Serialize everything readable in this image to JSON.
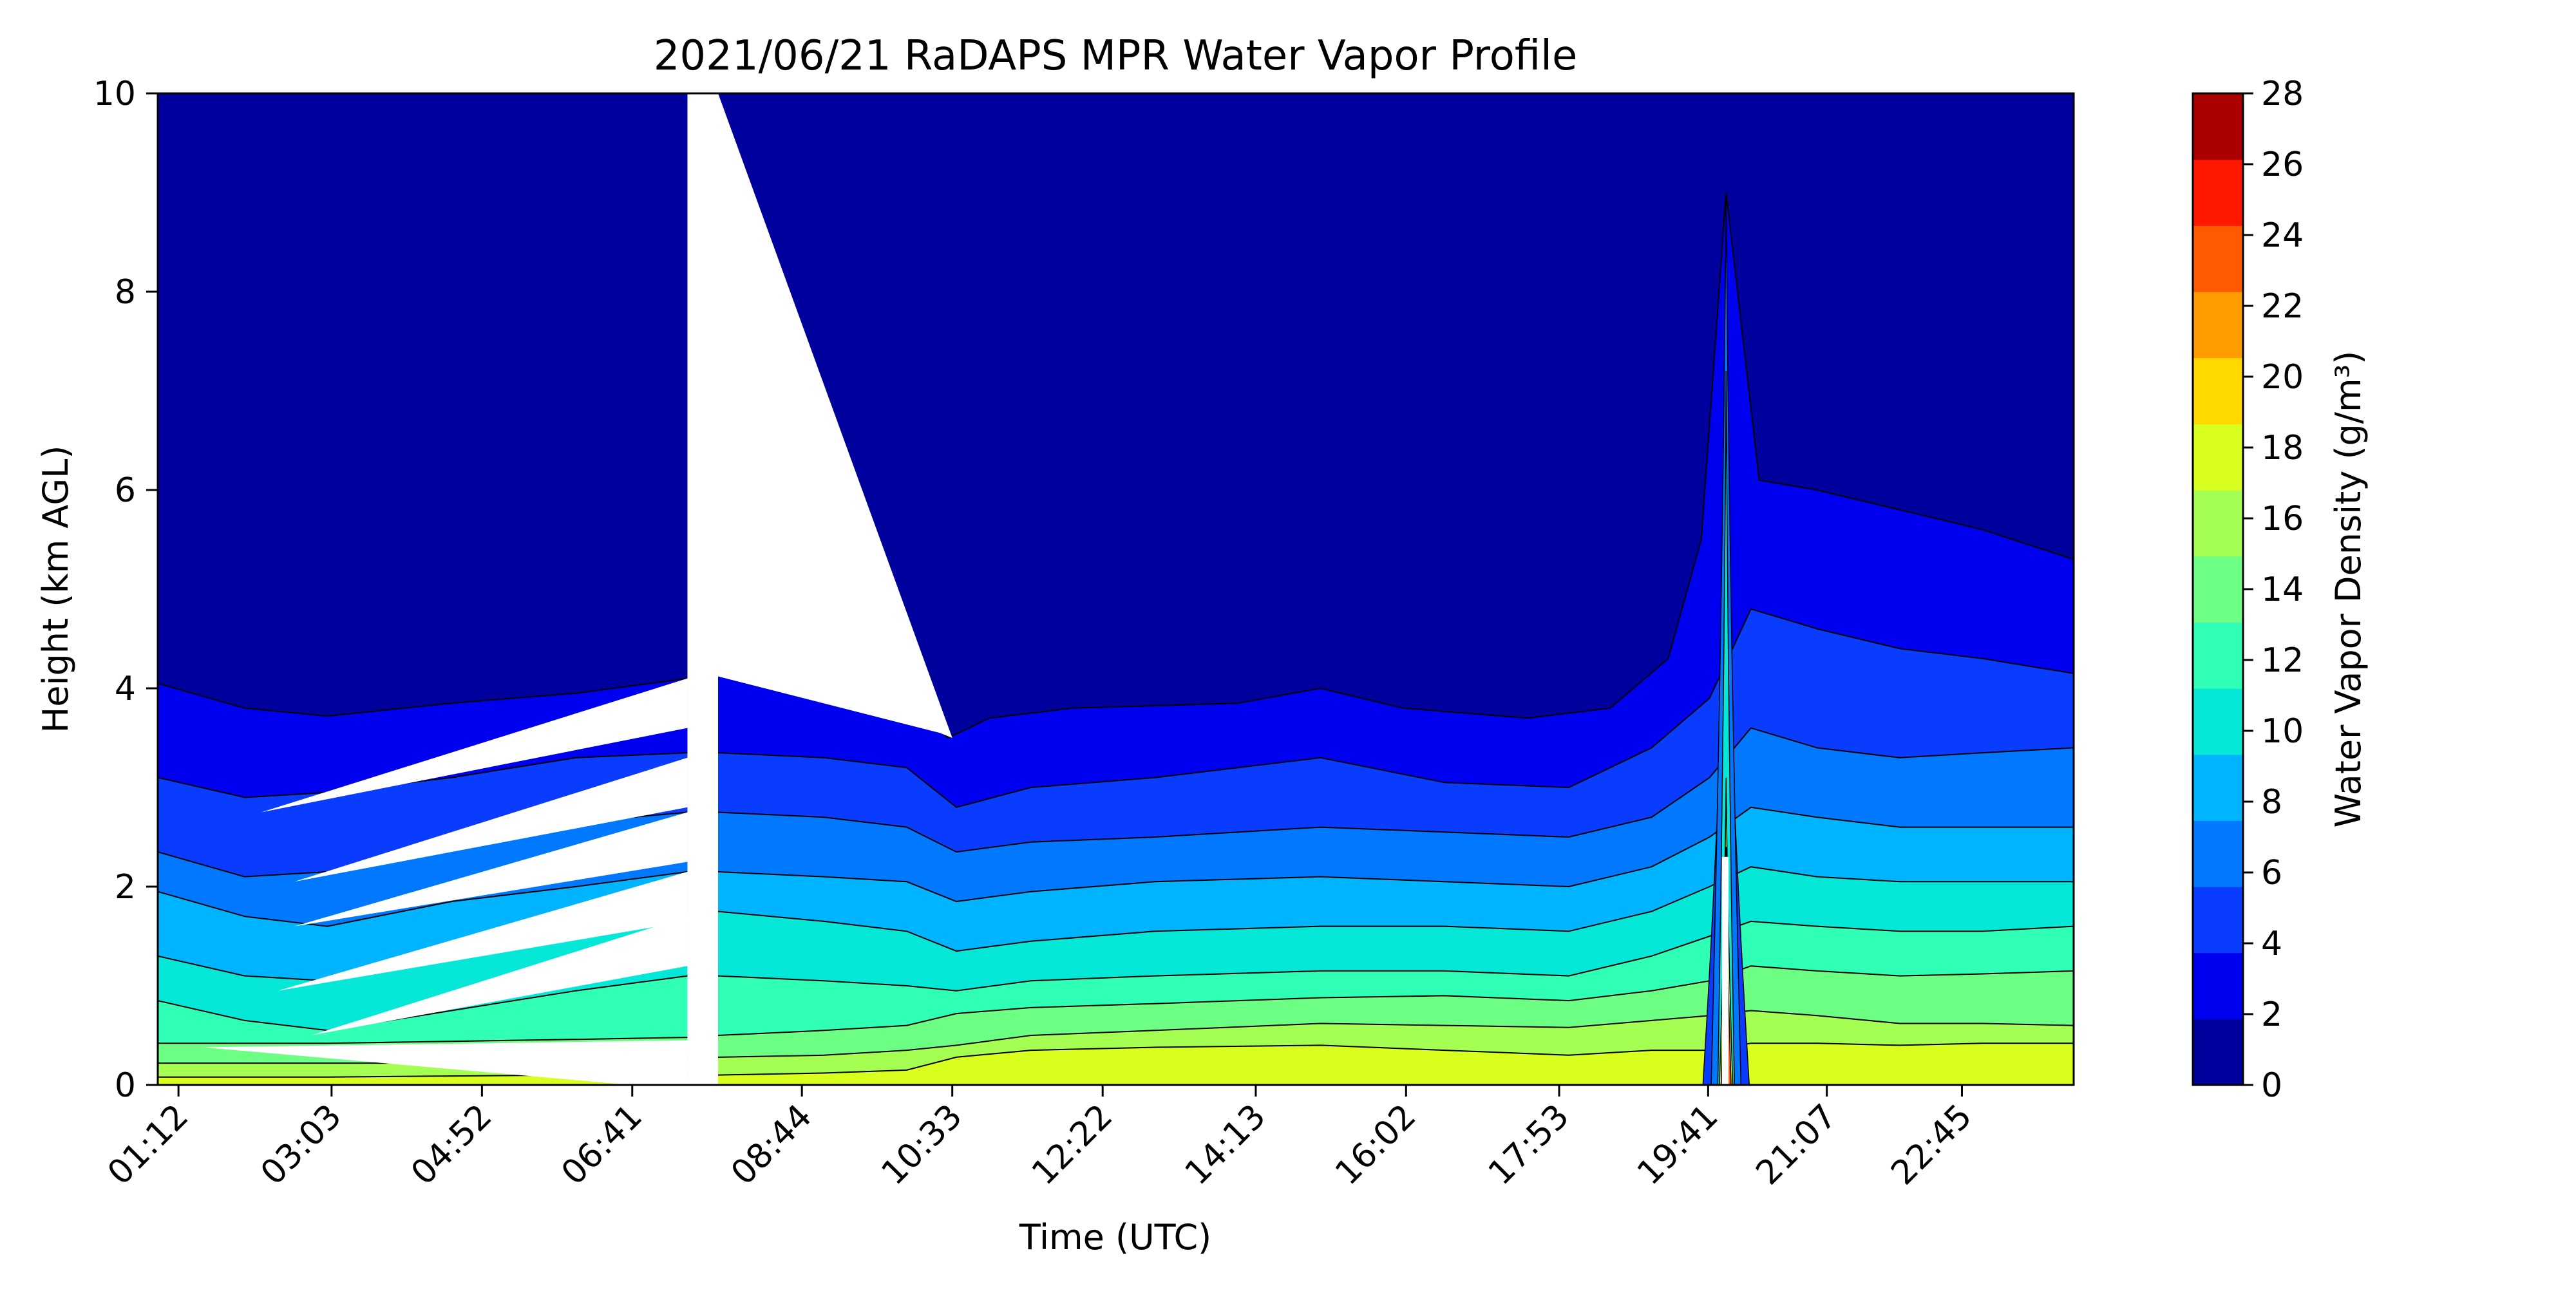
{
  "chart_data": {
    "type": "heatmap",
    "title": "2021/06/21 RaDAPS MPR Water Vapor Profile",
    "xlabel": "Time (UTC)",
    "ylabel": "Height (km AGL)",
    "x_ticks": [
      "01:12",
      "03:03",
      "04:52",
      "06:41",
      "08:44",
      "10:33",
      "12:22",
      "14:13",
      "16:02",
      "17:53",
      "19:41",
      "21:07",
      "22:45"
    ],
    "x_tick_hours": [
      1.2,
      3.05,
      4.867,
      6.683,
      8.733,
      10.55,
      12.367,
      14.217,
      16.033,
      17.883,
      19.683,
      21.117,
      22.75
    ],
    "xlim": [
      0.95,
      24.1
    ],
    "ylim": [
      0,
      10
    ],
    "y_ticks": [
      0,
      2,
      4,
      6,
      8,
      10
    ],
    "colorbar": {
      "label": "Water Vapor Density (g/m³)",
      "levels": [
        0,
        2,
        4,
        6,
        8,
        10,
        12,
        14,
        16,
        18,
        20,
        22,
        24,
        26,
        28
      ],
      "colors": [
        "#00009c",
        "#0000f0",
        "#0a3cff",
        "#0078ff",
        "#00b4ff",
        "#05e8d8",
        "#30ffb6",
        "#6dff84",
        "#a4ff52",
        "#d8ff1d",
        "#ffd800",
        "#ff9c00",
        "#ff5a00",
        "#ff1800",
        "#aa0000"
      ]
    },
    "data_gap": {
      "start_hour": 7.35,
      "end_hour": 7.72
    },
    "contour_boundaries_km": {
      "2": [
        [
          0.95,
          4.05
        ],
        [
          2.0,
          3.8
        ],
        [
          3.0,
          3.72
        ],
        [
          4.5,
          3.85
        ],
        [
          6.0,
          3.95
        ],
        [
          7.35,
          4.1
        ],
        [
          7.72,
          4.12
        ],
        [
          9.0,
          4.05
        ],
        [
          10.0,
          3.85
        ],
        [
          10.5,
          3.5
        ],
        [
          11.0,
          3.7
        ],
        [
          12.0,
          3.8
        ],
        [
          14.0,
          3.85
        ],
        [
          15.0,
          4.0
        ],
        [
          16.0,
          3.8
        ],
        [
          17.5,
          3.7
        ],
        [
          18.5,
          3.8
        ],
        [
          19.2,
          4.3
        ],
        [
          19.6,
          5.5
        ],
        [
          19.9,
          9.0
        ],
        [
          20.3,
          6.1
        ],
        [
          21.0,
          6.0
        ],
        [
          22.0,
          5.8
        ],
        [
          23.0,
          5.6
        ],
        [
          24.1,
          5.3
        ]
      ],
      "4": [
        [
          0.95,
          3.1
        ],
        [
          2.0,
          2.9
        ],
        [
          3.0,
          2.95
        ],
        [
          4.5,
          3.1
        ],
        [
          6.0,
          3.3
        ],
        [
          7.35,
          3.35
        ],
        [
          7.72,
          3.35
        ],
        [
          9.0,
          3.3
        ],
        [
          10.0,
          3.2
        ],
        [
          10.6,
          2.8
        ],
        [
          11.5,
          3.0
        ],
        [
          13.0,
          3.1
        ],
        [
          15.0,
          3.3
        ],
        [
          16.5,
          3.05
        ],
        [
          18.0,
          3.0
        ],
        [
          19.0,
          3.4
        ],
        [
          19.7,
          3.9
        ],
        [
          20.2,
          4.8
        ],
        [
          21.0,
          4.6
        ],
        [
          22.0,
          4.4
        ],
        [
          23.0,
          4.3
        ],
        [
          24.1,
          4.15
        ]
      ],
      "6": [
        [
          0.95,
          2.35
        ],
        [
          2.0,
          2.1
        ],
        [
          3.0,
          2.15
        ],
        [
          4.5,
          2.45
        ],
        [
          6.0,
          2.65
        ],
        [
          7.35,
          2.75
        ],
        [
          7.72,
          2.75
        ],
        [
          9.0,
          2.7
        ],
        [
          10.0,
          2.6
        ],
        [
          10.6,
          2.35
        ],
        [
          11.5,
          2.45
        ],
        [
          13.0,
          2.5
        ],
        [
          15.0,
          2.6
        ],
        [
          16.5,
          2.55
        ],
        [
          18.0,
          2.5
        ],
        [
          19.0,
          2.7
        ],
        [
          19.7,
          3.1
        ],
        [
          20.2,
          3.6
        ],
        [
          21.0,
          3.4
        ],
        [
          22.0,
          3.3
        ],
        [
          23.0,
          3.35
        ],
        [
          24.1,
          3.4
        ]
      ],
      "8": [
        [
          0.95,
          1.95
        ],
        [
          2.0,
          1.7
        ],
        [
          3.0,
          1.6
        ],
        [
          4.5,
          1.85
        ],
        [
          6.0,
          2.0
        ],
        [
          7.35,
          2.15
        ],
        [
          7.72,
          2.15
        ],
        [
          9.0,
          2.1
        ],
        [
          10.0,
          2.05
        ],
        [
          10.6,
          1.85
        ],
        [
          11.5,
          1.95
        ],
        [
          13.0,
          2.05
        ],
        [
          15.0,
          2.1
        ],
        [
          16.5,
          2.05
        ],
        [
          18.0,
          2.0
        ],
        [
          19.0,
          2.2
        ],
        [
          19.7,
          2.5
        ],
        [
          20.2,
          2.8
        ],
        [
          21.0,
          2.7
        ],
        [
          22.0,
          2.6
        ],
        [
          23.0,
          2.6
        ],
        [
          24.1,
          2.6
        ]
      ],
      "10": [
        [
          0.95,
          1.3
        ],
        [
          2.0,
          1.1
        ],
        [
          3.0,
          1.05
        ],
        [
          4.5,
          1.3
        ],
        [
          6.0,
          1.55
        ],
        [
          7.35,
          1.75
        ],
        [
          7.72,
          1.75
        ],
        [
          9.0,
          1.65
        ],
        [
          10.0,
          1.55
        ],
        [
          10.6,
          1.35
        ],
        [
          11.5,
          1.45
        ],
        [
          13.0,
          1.55
        ],
        [
          15.0,
          1.6
        ],
        [
          16.5,
          1.6
        ],
        [
          18.0,
          1.55
        ],
        [
          19.0,
          1.75
        ],
        [
          19.7,
          2.0
        ],
        [
          20.2,
          2.2
        ],
        [
          21.0,
          2.1
        ],
        [
          22.0,
          2.05
        ],
        [
          23.0,
          2.05
        ],
        [
          24.1,
          2.05
        ]
      ],
      "12": [
        [
          0.95,
          0.85
        ],
        [
          2.0,
          0.65
        ],
        [
          3.0,
          0.55
        ],
        [
          4.5,
          0.75
        ],
        [
          6.0,
          0.95
        ],
        [
          7.35,
          1.1
        ],
        [
          7.72,
          1.1
        ],
        [
          9.0,
          1.05
        ],
        [
          10.0,
          1.0
        ],
        [
          10.6,
          0.95
        ],
        [
          11.5,
          1.05
        ],
        [
          13.0,
          1.1
        ],
        [
          15.0,
          1.15
        ],
        [
          16.5,
          1.15
        ],
        [
          18.0,
          1.1
        ],
        [
          19.0,
          1.3
        ],
        [
          19.7,
          1.5
        ],
        [
          20.2,
          1.65
        ],
        [
          21.0,
          1.6
        ],
        [
          22.0,
          1.55
        ],
        [
          23.0,
          1.55
        ],
        [
          24.1,
          1.6
        ]
      ],
      "14": [
        [
          0.95,
          0.42
        ],
        [
          2.0,
          0.42
        ],
        [
          3.0,
          0.42
        ],
        [
          4.5,
          0.44
        ],
        [
          6.0,
          0.46
        ],
        [
          7.35,
          0.48
        ],
        [
          7.72,
          0.5
        ],
        [
          9.0,
          0.55
        ],
        [
          10.0,
          0.6
        ],
        [
          10.6,
          0.72
        ],
        [
          11.5,
          0.78
        ],
        [
          13.0,
          0.82
        ],
        [
          15.0,
          0.88
        ],
        [
          16.5,
          0.9
        ],
        [
          18.0,
          0.85
        ],
        [
          19.0,
          0.95
        ],
        [
          19.7,
          1.05
        ],
        [
          20.2,
          1.2
        ],
        [
          21.0,
          1.15
        ],
        [
          22.0,
          1.1
        ],
        [
          23.0,
          1.12
        ],
        [
          24.1,
          1.15
        ]
      ],
      "16": [
        [
          0.95,
          0.22
        ],
        [
          2.0,
          0.22
        ],
        [
          3.0,
          0.22
        ],
        [
          4.5,
          0.22
        ],
        [
          6.0,
          0.24
        ],
        [
          7.35,
          0.26
        ],
        [
          7.72,
          0.28
        ],
        [
          9.0,
          0.3
        ],
        [
          10.0,
          0.35
        ],
        [
          10.6,
          0.4
        ],
        [
          11.5,
          0.5
        ],
        [
          13.0,
          0.55
        ],
        [
          15.0,
          0.62
        ],
        [
          16.5,
          0.6
        ],
        [
          18.0,
          0.58
        ],
        [
          19.0,
          0.65
        ],
        [
          19.7,
          0.7
        ],
        [
          20.2,
          0.75
        ],
        [
          21.0,
          0.7
        ],
        [
          22.0,
          0.62
        ],
        [
          23.0,
          0.62
        ],
        [
          24.1,
          0.6
        ]
      ],
      "18": [
        [
          0.95,
          0.08
        ],
        [
          2.0,
          0.08
        ],
        [
          3.0,
          0.08
        ],
        [
          4.5,
          0.09
        ],
        [
          6.0,
          0.1
        ],
        [
          7.35,
          0.1
        ],
        [
          7.72,
          0.1
        ],
        [
          9.0,
          0.12
        ],
        [
          10.0,
          0.15
        ],
        [
          10.6,
          0.28
        ],
        [
          11.5,
          0.35
        ],
        [
          13.0,
          0.38
        ],
        [
          15.0,
          0.4
        ],
        [
          16.5,
          0.35
        ],
        [
          18.0,
          0.3
        ],
        [
          19.0,
          0.35
        ],
        [
          19.7,
          0.35
        ],
        [
          20.2,
          0.42
        ],
        [
          21.0,
          0.42
        ],
        [
          22.0,
          0.4
        ],
        [
          23.0,
          0.42
        ],
        [
          24.1,
          0.42
        ]
      ]
    },
    "features": {
      "spike_hour": 19.9,
      "spike_top_km": 9.0
    }
  }
}
